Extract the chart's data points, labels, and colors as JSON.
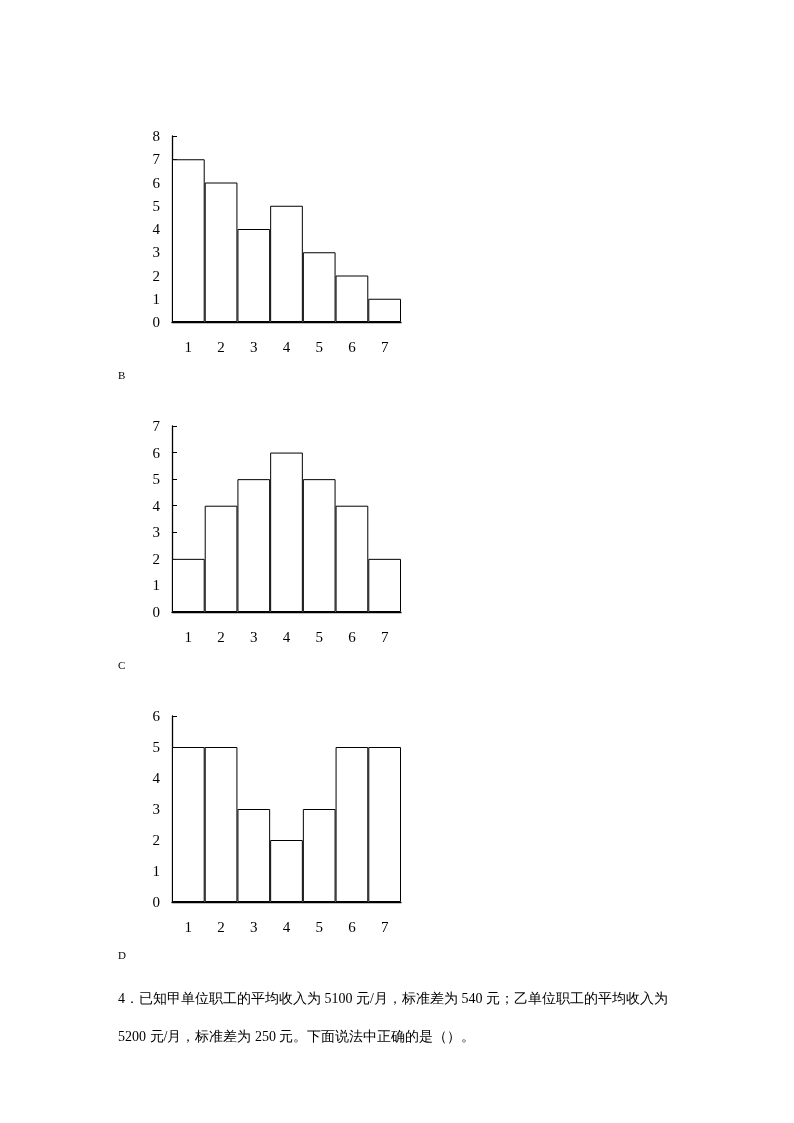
{
  "chart_data": [
    {
      "type": "bar",
      "categories": [
        "1",
        "2",
        "3",
        "4",
        "5",
        "6",
        "7"
      ],
      "values": [
        7,
        6,
        4,
        5,
        3,
        2,
        1
      ],
      "color": "#ffffff",
      "ylim": [
        0,
        8
      ],
      "yticks": [
        0,
        1,
        2,
        3,
        4,
        5,
        6,
        7,
        8
      ],
      "annotations": [
        "B"
      ]
    },
    {
      "type": "bar",
      "categories": [
        "1",
        "2",
        "3",
        "4",
        "5",
        "6",
        "7"
      ],
      "values": [
        2,
        4,
        5,
        6,
        5,
        4,
        2
      ],
      "color": "#ffffff",
      "ylim": [
        0,
        7
      ],
      "yticks": [
        0,
        1,
        2,
        3,
        4,
        5,
        6,
        7
      ],
      "annotations": [
        "C"
      ]
    },
    {
      "type": "bar",
      "categories": [
        "1",
        "2",
        "3",
        "4",
        "5",
        "6",
        "7"
      ],
      "values": [
        5,
        5,
        3,
        2,
        3,
        5,
        5
      ],
      "color": "#ffffff",
      "ylim": [
        0,
        6
      ],
      "yticks": [
        0,
        1,
        2,
        3,
        4,
        5,
        6
      ],
      "annotations": [
        "D"
      ]
    },
    {
      "type": "other",
      "annotations": [
        "4．已知甲单位职工的平均收入为 5100 元/月，标准差为 540 元；乙单位职工的平均收入为 5200 元/月，标准差为 250 元。下面说法中正确的是（）。"
      ]
    }
  ]
}
